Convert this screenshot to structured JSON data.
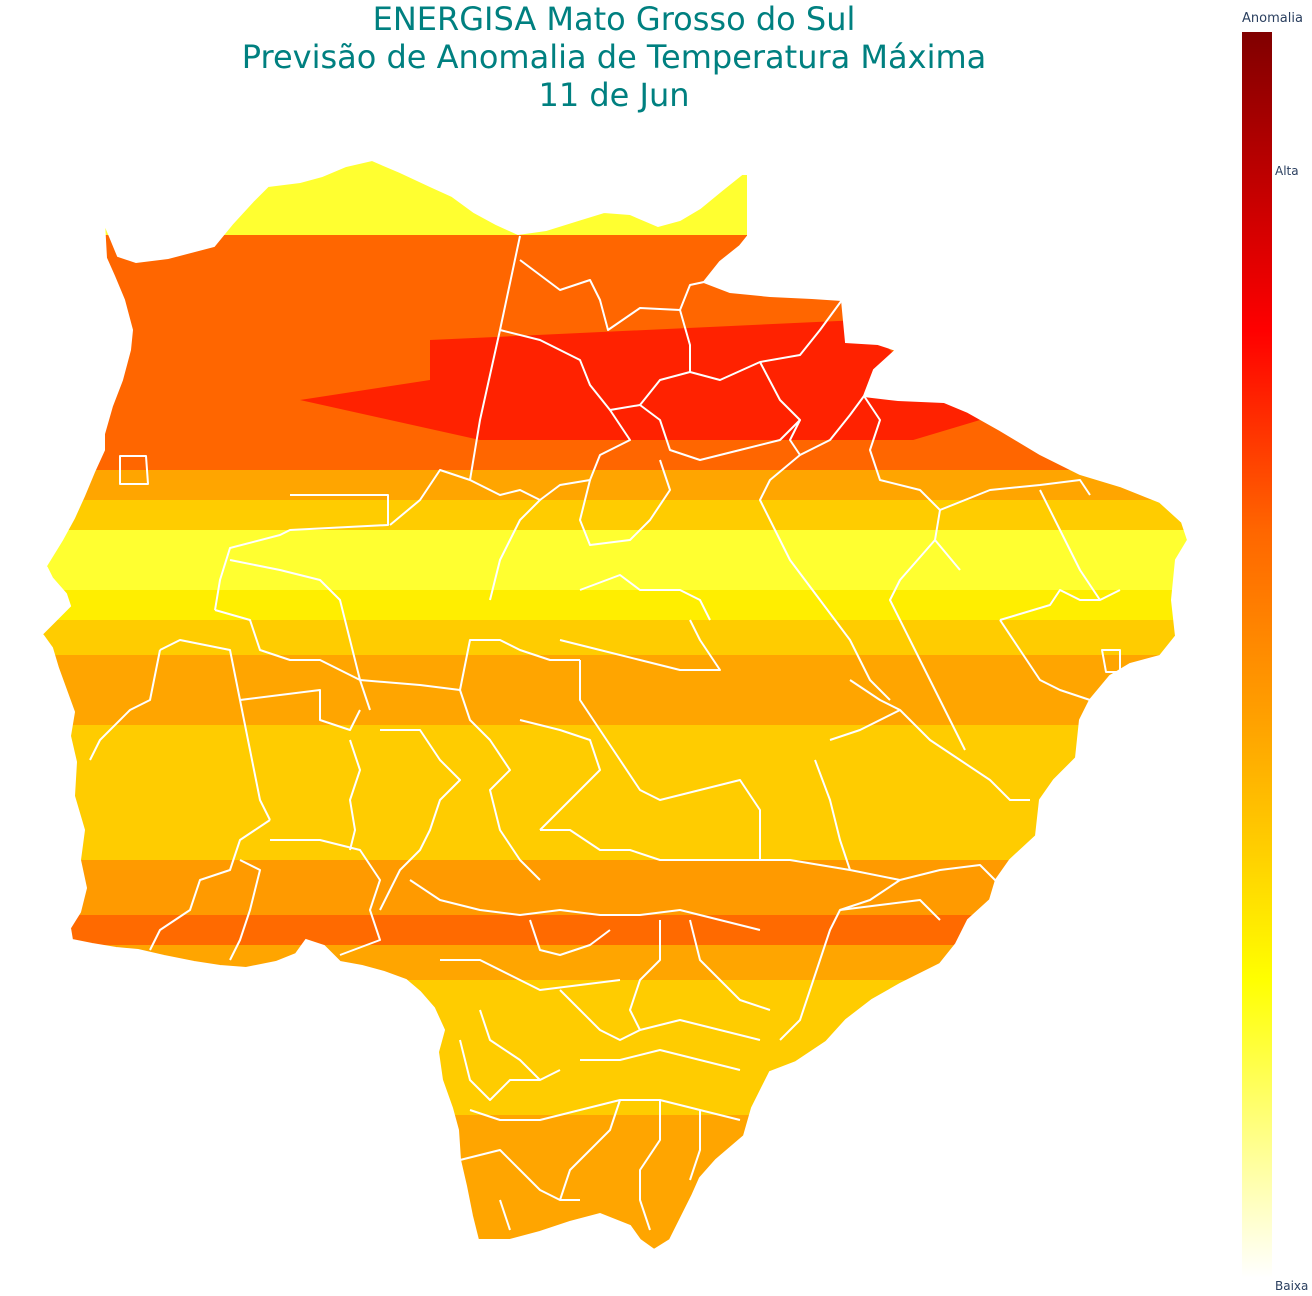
{
  "title": {
    "line1": "ENERGISA Mato Grosso do Sul",
    "line2": "Previsão de Anomalia de Temperatura Máxima",
    "line3": "11 de Jun"
  },
  "colorbar": {
    "title": "Anomalia",
    "tick_high": "Alta",
    "tick_low": "Baixa",
    "colorscale": [
      "#800000",
      "#c00000",
      "#ff0000",
      "#ff6600",
      "#ffa000",
      "#ffd000",
      "#ffff00",
      "#ffff80",
      "#ffffff"
    ]
  },
  "map": {
    "region": "Mato Grosso do Sul",
    "border_color": "#ffffff",
    "bands_north_to_south": [
      "#ffff30",
      "#ff6600",
      "#ff2200",
      "#ff6600",
      "#ffcc00",
      "#ffff30",
      "#ffcc00",
      "#ffa500",
      "#ffcc00",
      "#ff8800",
      "#ff5500",
      "#ffcc00",
      "#ffa500",
      "#ffa500"
    ]
  }
}
